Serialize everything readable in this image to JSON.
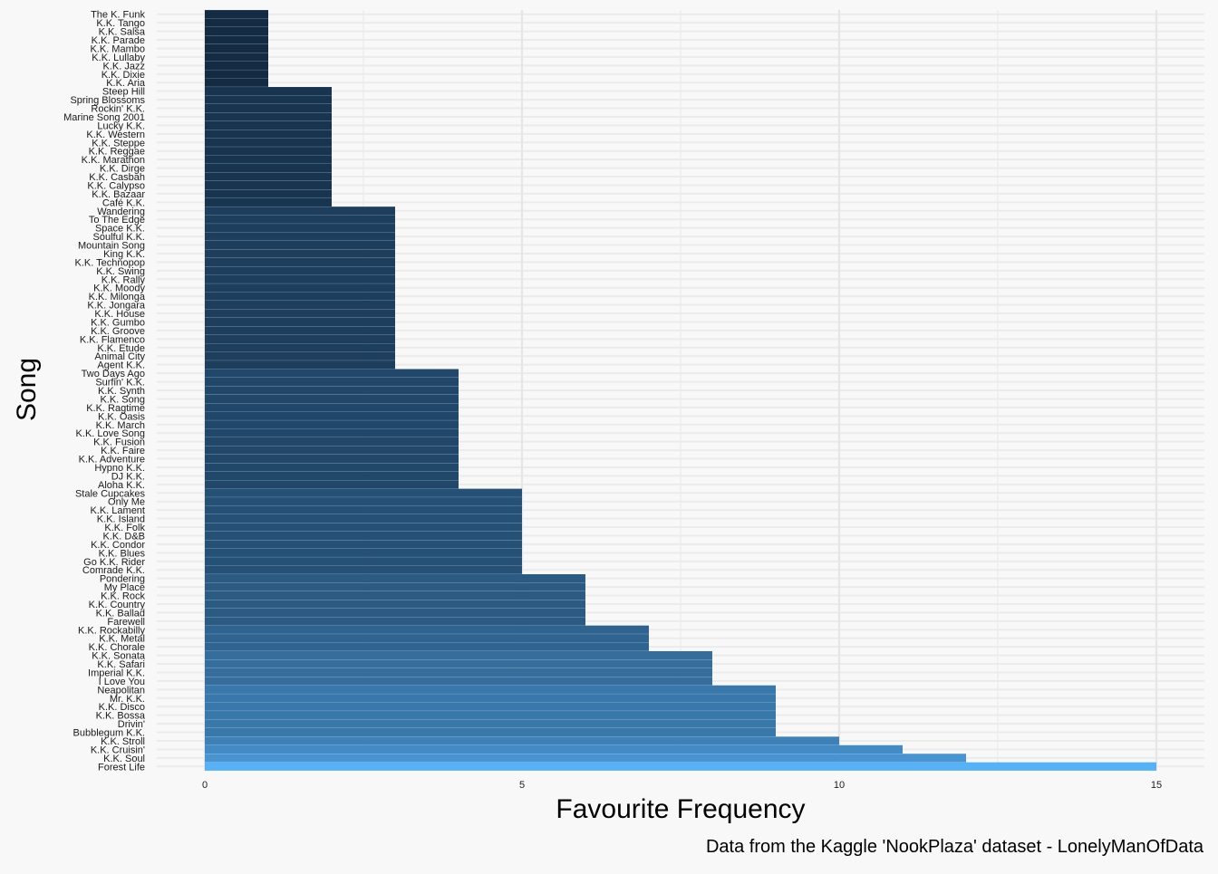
{
  "chart_data": {
    "type": "bar",
    "orientation": "horizontal",
    "title": "",
    "xlabel": "Favourite Frequency",
    "ylabel": "Song",
    "caption": "Data from the Kaggle 'NookPlaza' dataset - LonelyManOfData",
    "xlim": [
      0,
      15
    ],
    "x_ticks": [
      0,
      5,
      10,
      15
    ],
    "grid": true,
    "color_scale": {
      "low": "#132B43",
      "high": "#56B1F7"
    },
    "categories": [
      "The K. Funk",
      "K.K. Tango",
      "K.K. Salsa",
      "K.K. Parade",
      "K.K. Mambo",
      "K.K. Lullaby",
      "K.K. Jazz",
      "K.K. Dixie",
      "K.K. Aria",
      "Steep Hill",
      "Spring Blossoms",
      "Rockin' K.K.",
      "Marine Song 2001",
      "Lucky K.K.",
      "K.K. Western",
      "K.K. Steppe",
      "K.K. Reggae",
      "K.K. Marathon",
      "K.K. Dirge",
      "K.K. Casbah",
      "K.K. Calypso",
      "K.K. Bazaar",
      "Café K.K.",
      "Wandering",
      "To The Edge",
      "Space K.K.",
      "Soulful K.K.",
      "Mountain Song",
      "King K.K.",
      "K.K. Technopop",
      "K.K. Swing",
      "K.K. Rally",
      "K.K. Moody",
      "K.K. Milonga",
      "K.K. Jongara",
      "K.K. House",
      "K.K. Gumbo",
      "K.K. Groove",
      "K.K. Flamenco",
      "K.K. Etude",
      "Animal City",
      "Agent K.K.",
      "Two Days Ago",
      "Surfin' K.K.",
      "K.K. Synth",
      "K.K. Song",
      "K.K. Ragtime",
      "K.K. Oasis",
      "K.K. March",
      "K.K. Love Song",
      "K.K. Fusion",
      "K.K. Faire",
      "K.K. Adventure",
      "Hypno K.K.",
      "DJ K.K.",
      "Aloha K.K.",
      "Stale Cupcakes",
      "Only Me",
      "K.K. Lament",
      "K.K. Island",
      "K.K. Folk",
      "K.K. D&B",
      "K.K. Condor",
      "K.K. Blues",
      "Go K.K. Rider",
      "Comrade K.K.",
      "Pondering",
      "My Place",
      "K.K. Rock",
      "K.K. Country",
      "K.K. Ballad",
      "Farewell",
      "K.K. Rockabilly",
      "K.K. Metal",
      "K.K. Chorale",
      "K.K. Sonata",
      "K.K. Safari",
      "Imperial K.K.",
      "I Love You",
      "Neapolitan",
      "Mr. K.K.",
      "K.K. Disco",
      "K.K. Bossa",
      "Drivin'",
      "Bubblegum K.K.",
      "K.K. Stroll",
      "K.K. Cruisin'",
      "K.K. Soul",
      "Forest Life"
    ],
    "values": [
      1,
      1,
      1,
      1,
      1,
      1,
      1,
      1,
      1,
      2,
      2,
      2,
      2,
      2,
      2,
      2,
      2,
      2,
      2,
      2,
      2,
      2,
      2,
      3,
      3,
      3,
      3,
      3,
      3,
      3,
      3,
      3,
      3,
      3,
      3,
      3,
      3,
      3,
      3,
      3,
      3,
      3,
      4,
      4,
      4,
      4,
      4,
      4,
      4,
      4,
      4,
      4,
      4,
      4,
      4,
      4,
      5,
      5,
      5,
      5,
      5,
      5,
      5,
      5,
      5,
      5,
      6,
      6,
      6,
      6,
      6,
      6,
      7,
      7,
      7,
      8,
      8,
      8,
      8,
      9,
      9,
      9,
      9,
      9,
      9,
      10,
      11,
      12,
      15
    ]
  }
}
